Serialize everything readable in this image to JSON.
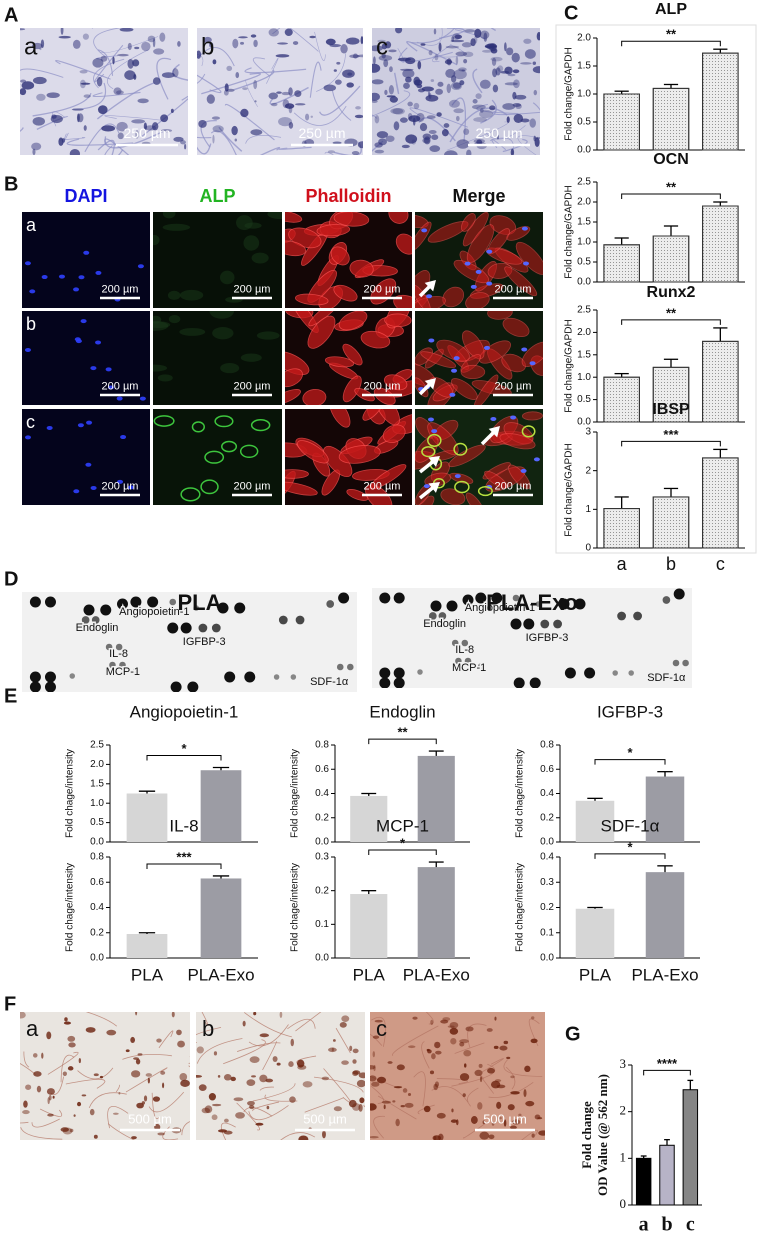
{
  "panels": {
    "A": {
      "label": "A",
      "images": [
        {
          "label": "a",
          "scale_bar": "250 µm"
        },
        {
          "label": "b",
          "scale_bar": "250 µm"
        },
        {
          "label": "c",
          "scale_bar": "250 µm"
        }
      ]
    },
    "B": {
      "label": "B",
      "channels": [
        {
          "name": "DAPI",
          "color": "#1414e0"
        },
        {
          "name": "ALP",
          "color": "#22b422"
        },
        {
          "name": "Phalloidin",
          "color": "#d0101c"
        },
        {
          "name": "Merge",
          "color": "#111111"
        }
      ],
      "rows": [
        {
          "label": "a",
          "scale_bars": [
            "200 µm",
            "200 µm",
            "200 µm",
            "200 µm"
          ]
        },
        {
          "label": "b",
          "scale_bars": [
            "200 µm",
            "200 µm",
            "200 µm",
            "200 µm"
          ]
        },
        {
          "label": "c",
          "scale_bars": [
            "200 µm",
            "200 µm",
            "200 µm",
            "200 µm"
          ]
        }
      ]
    },
    "C": {
      "label": "C"
    },
    "D": {
      "label": "D",
      "arrays": [
        {
          "title": "PLA",
          "spots": [
            "Angiopoietin-1",
            "Endoglin",
            "IGFBP-3",
            "IL-8",
            "MCP-1",
            "SDF-1α"
          ]
        },
        {
          "title": "PLA-Exo",
          "spots": [
            "Angiopoietin-1",
            "Endoglin",
            "IGFBP-3",
            "IL-8",
            "MCP-1",
            "SDF-1α"
          ]
        }
      ]
    },
    "E": {
      "label": "E"
    },
    "F": {
      "label": "F",
      "images": [
        {
          "label": "a",
          "scale_bar": "500 µm"
        },
        {
          "label": "b",
          "scale_bar": "500 µm"
        },
        {
          "label": "c",
          "scale_bar": "500 µm"
        }
      ]
    },
    "G": {
      "label": "G"
    }
  },
  "chart_data": [
    {
      "type": "bar",
      "title": "ALP",
      "y_label": "Fold change/GAPDH",
      "values": [
        1.0,
        1.1,
        1.73
      ],
      "errors": [
        0.05,
        0.07,
        0.07
      ],
      "colors": [
        "#ececec",
        "#ececec",
        "#ececec"
      ],
      "ylim": [
        0,
        2
      ],
      "yticks": [
        {
          "value": 0,
          "label": "0.0"
        },
        0.5,
        {
          "value": 1,
          "label": "1.0"
        },
        1.5,
        {
          "value": 2,
          "label": "2.0"
        }
      ],
      "annotation": "**"
    },
    {
      "type": "bar",
      "title": "OCN",
      "y_label": "Fold change/GAPDH",
      "values": [
        0.93,
        1.15,
        1.9
      ],
      "errors": [
        0.17,
        0.25,
        0.1
      ],
      "colors": [
        "#ececec",
        "#ececec",
        "#ececec"
      ],
      "ylim": [
        0,
        2.5
      ],
      "yticks": [
        {
          "value": 0,
          "label": "0.0"
        },
        0.5,
        {
          "value": 1,
          "label": "1.0"
        },
        1.5,
        {
          "value": 2,
          "label": "2.0"
        },
        2.5
      ],
      "annotation": "**"
    },
    {
      "type": "bar",
      "title": "Runx2",
      "y_label": "Fold change/GAPDH",
      "values": [
        1.0,
        1.22,
        1.8
      ],
      "errors": [
        0.08,
        0.18,
        0.3
      ],
      "colors": [
        "#ececec",
        "#ececec",
        "#ececec"
      ],
      "ylim": [
        0,
        2.5
      ],
      "yticks": [
        {
          "value": 0,
          "label": "0.0"
        },
        0.5,
        {
          "value": 1,
          "label": "1.0"
        },
        1.5,
        {
          "value": 2,
          "label": "2.0"
        },
        2.5
      ],
      "annotation": "**"
    },
    {
      "type": "bar",
      "title": "IBSP",
      "y_label": "Fold change/GAPDH",
      "categories": [
        "a",
        "b",
        "c"
      ],
      "values": [
        1.02,
        1.32,
        2.33
      ],
      "errors": [
        0.3,
        0.22,
        0.22
      ],
      "colors": [
        "#ececec",
        "#ececec",
        "#ececec"
      ],
      "ylim": [
        0,
        3
      ],
      "yticks": [
        0,
        1,
        2,
        3
      ],
      "annotation": "***"
    },
    {
      "type": "bar",
      "title": "Angiopoietin-1",
      "y_label": "Fold chage/intensity",
      "values": [
        1.25,
        1.85
      ],
      "errors": [
        0.06,
        0.07
      ],
      "colors": [
        "#d6d6d6",
        "#9c9ca4"
      ],
      "ylim": [
        0,
        2.5
      ],
      "yticks": [
        {
          "value": 0,
          "label": "0.0"
        },
        0.5,
        {
          "value": 1,
          "label": "1.0"
        },
        1.5,
        {
          "value": 2,
          "label": "2.0"
        },
        2.5
      ],
      "annotation": "*"
    },
    {
      "type": "bar",
      "title": "Endoglin",
      "y_label": "Fold chage/intensity",
      "values": [
        0.38,
        0.71
      ],
      "errors": [
        0.02,
        0.04
      ],
      "colors": [
        "#d6d6d6",
        "#9c9ca4"
      ],
      "ylim": [
        0,
        0.8
      ],
      "yticks": [
        {
          "value": 0,
          "label": "0.0"
        },
        0.2,
        0.4,
        0.6,
        0.8
      ],
      "annotation": "**"
    },
    {
      "type": "bar",
      "title": "IGFBP-3",
      "y_label": "Fold chage/intensity",
      "values": [
        0.34,
        0.54
      ],
      "errors": [
        0.02,
        0.04
      ],
      "colors": [
        "#d6d6d6",
        "#9c9ca4"
      ],
      "ylim": [
        0,
        0.8
      ],
      "yticks": [
        {
          "value": 0,
          "label": "0.0"
        },
        0.2,
        0.4,
        0.6,
        0.8
      ],
      "annotation": "*"
    },
    {
      "type": "bar",
      "title": "IL-8",
      "y_label": "Fold chage/intensity",
      "categories": [
        "PLA",
        "PLA-Exo"
      ],
      "values": [
        0.19,
        0.63
      ],
      "errors": [
        0.01,
        0.02
      ],
      "colors": [
        "#d6d6d6",
        "#9c9ca4"
      ],
      "ylim": [
        0,
        0.8
      ],
      "yticks": [
        {
          "value": 0,
          "label": "0.0"
        },
        0.2,
        0.4,
        0.6,
        0.8
      ],
      "annotation": "***"
    },
    {
      "type": "bar",
      "title": "MCP-1",
      "y_label": "Fold chage/intensity",
      "categories": [
        "PLA",
        "PLA-Exo"
      ],
      "values": [
        0.19,
        0.27
      ],
      "errors": [
        0.01,
        0.015
      ],
      "colors": [
        "#d6d6d6",
        "#9c9ca4"
      ],
      "ylim": [
        0,
        0.3
      ],
      "yticks": [
        {
          "value": 0,
          "label": "0.0"
        },
        0.1,
        0.2,
        0.3
      ],
      "annotation": "*"
    },
    {
      "type": "bar",
      "title": "SDF-1α",
      "y_label": "Fold chage/intensity",
      "categories": [
        "PLA",
        "PLA-Exo"
      ],
      "values": [
        0.195,
        0.34
      ],
      "errors": [
        0.005,
        0.025
      ],
      "colors": [
        "#d6d6d6",
        "#9c9ca4"
      ],
      "ylim": [
        0,
        0.4
      ],
      "yticks": [
        {
          "value": 0,
          "label": "0.0"
        },
        0.1,
        0.2,
        0.3,
        0.4
      ],
      "annotation": "*"
    },
    {
      "type": "bar",
      "y_label": [
        "Fold change",
        "OD Value (@ 562 nm)"
      ],
      "categories": [
        "a",
        "b",
        "c"
      ],
      "values": [
        1.0,
        1.28,
        2.47
      ],
      "errors": [
        0.05,
        0.12,
        0.2
      ],
      "colors": [
        "#000000",
        "#b7b3c7",
        "#858585"
      ],
      "ylim": [
        0,
        3
      ],
      "yticks": [
        0,
        1,
        2,
        3
      ],
      "annotation": "****"
    }
  ]
}
